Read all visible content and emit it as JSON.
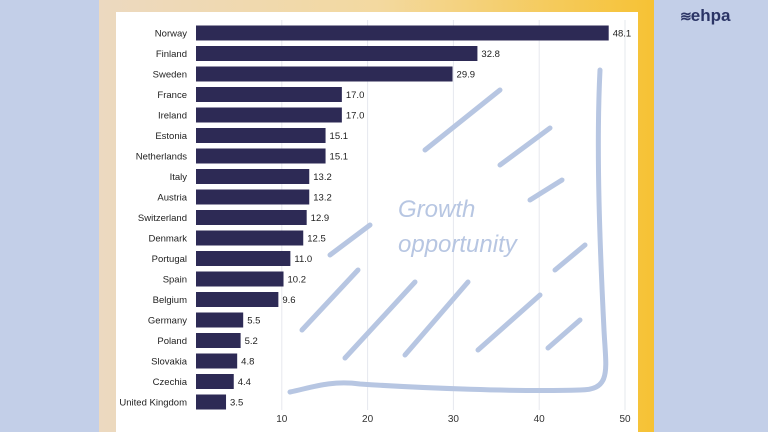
{
  "logo": {
    "text": "ehpa",
    "icon": "waves-icon"
  },
  "annotation": {
    "line1": "Growth",
    "line2": "opportunity"
  },
  "colors": {
    "bar": "#2d2a55",
    "annotation": "#b7c6e2",
    "background": "#c3cfe8"
  },
  "chart_data": {
    "type": "bar",
    "orientation": "horizontal",
    "categories": [
      "Norway",
      "Finland",
      "Sweden",
      "France",
      "Ireland",
      "Estonia",
      "Netherlands",
      "Italy",
      "Austria",
      "Switzerland",
      "Denmark",
      "Portugal",
      "Spain",
      "Belgium",
      "Germany",
      "Poland",
      "Slovakia",
      "Czechia",
      "United Kingdom"
    ],
    "values": [
      48.1,
      32.8,
      29.9,
      17.0,
      17.0,
      15.1,
      15.1,
      13.2,
      13.2,
      12.9,
      12.5,
      11.0,
      10.2,
      9.6,
      5.5,
      5.2,
      4.8,
      4.4,
      3.5
    ],
    "value_labels": [
      "48.1",
      "32.8",
      "29.9",
      "17.0",
      "17.0",
      "15.1",
      "15.1",
      "13.2",
      "13.2",
      "12.9",
      "12.5",
      "11.0",
      "10.2",
      "9.6",
      "5.5",
      "5.2",
      "4.8",
      "4.4",
      "3.5"
    ],
    "xticks": [
      "10",
      "20",
      "30",
      "40",
      "50"
    ],
    "xlim": [
      0,
      50
    ],
    "grid": true,
    "title": "",
    "xlabel": "",
    "ylabel": ""
  }
}
